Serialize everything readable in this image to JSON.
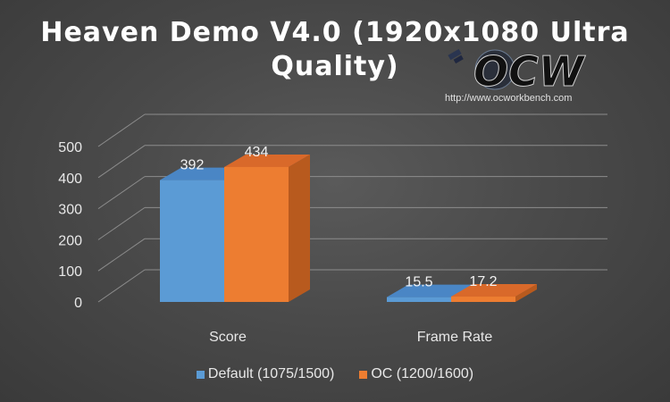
{
  "title_line1": "Heaven Demo V4.0 (1920x1080 Ultra",
  "title_line2": "Quality)",
  "watermark": {
    "logo_text": "OCW",
    "url": "http://www.ocworkbench.com"
  },
  "colors": {
    "background": "#4a4a4a",
    "default_front": "#5b9bd5",
    "default_side": "#3a6fa8",
    "default_top": "#4a86c5",
    "oc_front": "#ed7d31",
    "oc_side": "#b85a1e",
    "oc_top": "#d9692a",
    "gridline": "#8c8c8c",
    "text": "#e8e8e8"
  },
  "chart_data": {
    "type": "bar",
    "categories": [
      "Score",
      "Frame Rate"
    ],
    "series": [
      {
        "name": "Default (1075/1500)",
        "values": [
          392,
          15.5
        ],
        "labels": [
          "392",
          "15.5"
        ]
      },
      {
        "name": "OC (1200/1600)",
        "values": [
          434,
          17.2
        ],
        "labels": [
          "434",
          "17.2"
        ]
      }
    ],
    "ylim": [
      0,
      500
    ],
    "yticks": [
      "0",
      "100",
      "200",
      "300",
      "400",
      "500"
    ],
    "yticks_values": [
      0,
      100,
      200,
      300,
      400,
      500
    ],
    "grid": true,
    "three_d": true,
    "legend_position": "bottom"
  }
}
